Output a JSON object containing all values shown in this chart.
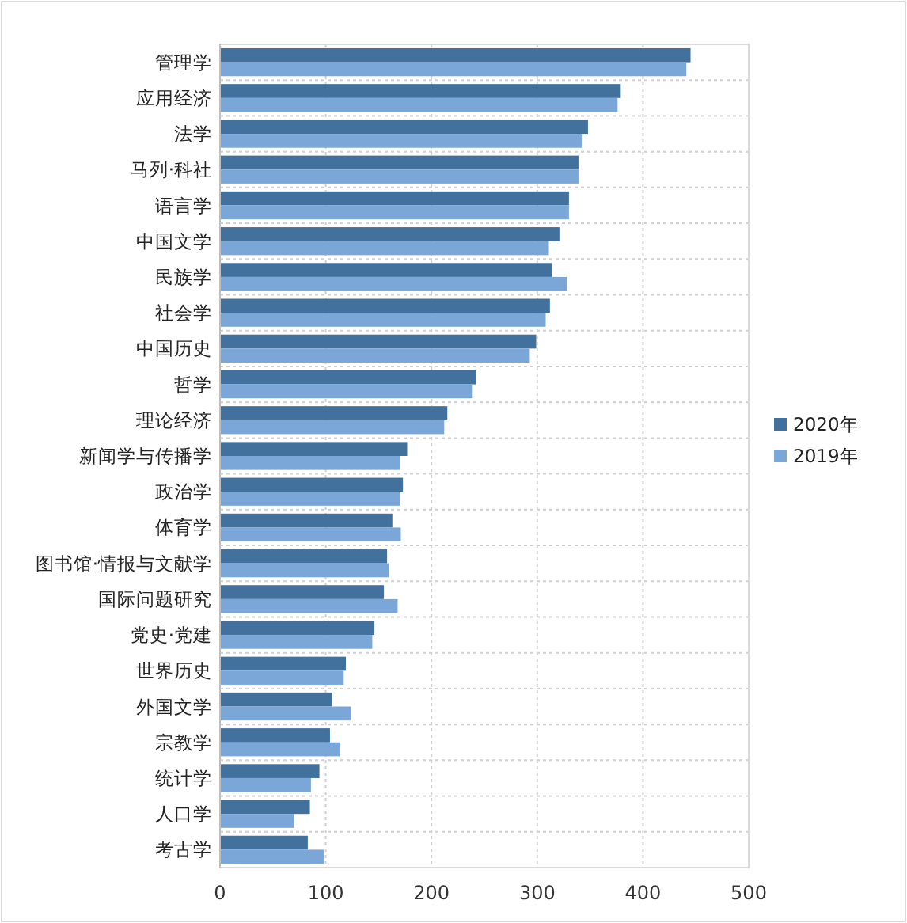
{
  "chart_data": {
    "type": "bar",
    "orientation": "horizontal",
    "categories": [
      "管理学",
      "应用经济",
      "法学",
      "马列·科社",
      "语言学",
      "中国文学",
      "民族学",
      "社会学",
      "中国历史",
      "哲学",
      "理论经济",
      "新闻学与传播学",
      "政治学",
      "体育学",
      "图书馆·情报与文献学",
      "国际问题研究",
      "党史·党建",
      "世界历史",
      "外国文学",
      "宗教学",
      "统计学",
      "人口学",
      "考古学"
    ],
    "series": [
      {
        "name": "2020年",
        "color": "#41719c",
        "values": [
          445,
          379,
          348,
          339,
          330,
          321,
          314,
          312,
          299,
          242,
          215,
          177,
          173,
          163,
          158,
          155,
          146,
          119,
          106,
          104,
          94,
          85,
          83
        ]
      },
      {
        "name": "2019年",
        "color": "#7aa6d8",
        "values": [
          441,
          376,
          342,
          339,
          330,
          311,
          328,
          308,
          293,
          239,
          212,
          170,
          170,
          171,
          160,
          168,
          144,
          117,
          124,
          113,
          86,
          70,
          98
        ]
      }
    ],
    "xlim": [
      0,
      500
    ],
    "xticks": [
      0,
      100,
      200,
      300,
      400,
      500
    ],
    "grid": true,
    "legend": "right"
  }
}
